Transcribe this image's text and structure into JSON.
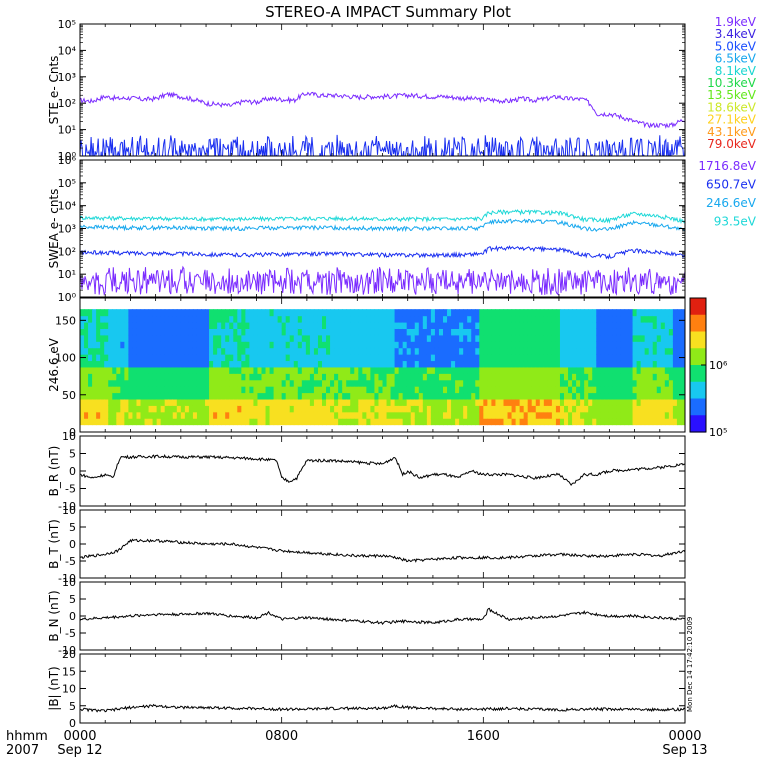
{
  "title": "STEREO-A IMPACT Summary Plot",
  "colors": {
    "axis": "#000000",
    "trace": "#000000"
  },
  "ste_legend": [
    {
      "label": "1.9keV",
      "color": "#7b2cff"
    },
    {
      "label": "3.4keV",
      "color": "#3a1fe0"
    },
    {
      "label": "5.0keV",
      "color": "#1a4dff"
    },
    {
      "label": "6.5keV",
      "color": "#16a6ee"
    },
    {
      "label": "8.1keV",
      "color": "#19d6d0"
    },
    {
      "label": "10.3keV",
      "color": "#20d84a"
    },
    {
      "label": "13.5keV",
      "color": "#62e81b"
    },
    {
      "label": "18.6keV",
      "color": "#cde82a"
    },
    {
      "label": "27.1keV",
      "color": "#ffd21e"
    },
    {
      "label": "43.1keV",
      "color": "#ff9a1a"
    },
    {
      "label": "79.0keV",
      "color": "#e8281e"
    }
  ],
  "swea_legend": [
    {
      "label": "1716.8eV",
      "color": "#7b2cff"
    },
    {
      "label": "650.7eV",
      "color": "#1a2ff0"
    },
    {
      "label": "246.6eV",
      "color": "#18a8ee"
    },
    {
      "label": "93.5eV",
      "color": "#1ed8d8"
    }
  ],
  "x_axis": {
    "row_label": "hhmm",
    "year_label": "2007",
    "ticks": [
      {
        "value": 0,
        "label": "0000",
        "date": "Sep 12"
      },
      {
        "value": 8,
        "label": "0800",
        "date": ""
      },
      {
        "value": 16,
        "label": "1600",
        "date": ""
      },
      {
        "value": 24,
        "label": "0000",
        "date": "Sep 13"
      }
    ]
  },
  "side_stamp": "Mon Dec 14 17:42:10 2009",
  "chart_data": [
    {
      "id": "ste",
      "type": "line",
      "ylabel": "STE e- Cnts",
      "y_scale": "log",
      "ylim": [
        1,
        100000
      ],
      "ytick_labels": [
        "10⁰",
        "10¹",
        "10²",
        "10³",
        "10⁴",
        "10⁵"
      ],
      "series": [
        {
          "name": "1.9keV",
          "color": "#7b2cff",
          "x": [
            0,
            0.5,
            1,
            1.5,
            2,
            2.5,
            3,
            3.5,
            4,
            4.5,
            5,
            5.5,
            6,
            6.5,
            7,
            7.5,
            8,
            8.5,
            9,
            9.5,
            10,
            10.5,
            11,
            11.5,
            12,
            12.5,
            13,
            13.5,
            14,
            14.5,
            15,
            15.5,
            16,
            16.5,
            17,
            17.5,
            18,
            18.5,
            19,
            19.2,
            19.5,
            20,
            20.5,
            21,
            21.5,
            22,
            22.5,
            23,
            23.5,
            24
          ],
          "y": [
            130,
            120,
            180,
            150,
            160,
            140,
            150,
            220,
            180,
            140,
            100,
            90,
            80,
            120,
            110,
            150,
            140,
            130,
            240,
            200,
            200,
            190,
            170,
            180,
            180,
            190,
            200,
            190,
            180,
            180,
            160,
            150,
            140,
            130,
            120,
            150,
            130,
            150,
            180,
            150,
            150,
            140,
            40,
            40,
            30,
            20,
            15,
            15,
            15,
            25
          ]
        },
        {
          "name": "3.4keV",
          "color": "#1a2ff0",
          "x": [
            0,
            24
          ],
          "y": [
            1.5,
            1.5
          ]
        }
      ]
    },
    {
      "id": "swea",
      "type": "line",
      "ylabel": "SWEA e- cnts",
      "y_scale": "log",
      "ylim": [
        1,
        1000000
      ],
      "ytick_labels": [
        "10⁰",
        "10¹",
        "10²",
        "10³",
        "10⁴",
        "10⁵",
        "10⁶"
      ],
      "series": [
        {
          "name": "93.5eV",
          "color": "#1ed8d8",
          "x": [
            0,
            2,
            4,
            6,
            8,
            10,
            12,
            14,
            15,
            16,
            16.2,
            17,
            18,
            19,
            20,
            21,
            22,
            23,
            24
          ],
          "y": [
            3000,
            2800,
            2700,
            2600,
            2700,
            2800,
            2600,
            2600,
            2600,
            2800,
            5000,
            5500,
            5200,
            4800,
            2500,
            2300,
            4500,
            3500,
            2000
          ]
        },
        {
          "name": "246.6eV",
          "color": "#18a8ee",
          "x": [
            0,
            2,
            4,
            6,
            8,
            10,
            12,
            14,
            15,
            16,
            16.2,
            17,
            18,
            19,
            20,
            21,
            22,
            23,
            24
          ],
          "y": [
            1200,
            1100,
            1100,
            1000,
            1100,
            1100,
            1000,
            1000,
            1000,
            1100,
            2000,
            2200,
            2100,
            1900,
            1000,
            900,
            1800,
            1400,
            800
          ]
        },
        {
          "name": "650.7eV",
          "color": "#1a2ff0",
          "x": [
            0,
            2,
            4,
            6,
            8,
            10,
            12,
            14,
            15,
            16,
            16.2,
            17,
            18,
            19,
            20,
            21,
            22,
            23,
            24
          ],
          "y": [
            90,
            85,
            80,
            70,
            75,
            80,
            70,
            70,
            70,
            80,
            130,
            140,
            130,
            120,
            70,
            60,
            110,
            90,
            60
          ]
        },
        {
          "name": "1716.8eV",
          "color": "#7b2cff",
          "x": [
            0,
            24
          ],
          "y": [
            5,
            5
          ]
        }
      ]
    },
    {
      "id": "pad",
      "type": "heatmap",
      "ylabel": "246.6 eV",
      "ylim": [
        0,
        180
      ],
      "yticks": [
        0,
        50,
        100,
        150
      ],
      "colorbar": {
        "scale": "log",
        "range": [
          100000,
          10000000
        ],
        "tick_labels": [
          "10⁵",
          "10⁶"
        ],
        "tick_values": [
          100000,
          1000000
        ]
      },
      "segments": [
        {
          "x0": 0,
          "x1": 1.2,
          "core": 0.55
        },
        {
          "x0": 1.2,
          "x1": 2.0,
          "core": 0.35
        },
        {
          "x0": 2.0,
          "x1": 5.2,
          "core": 0.2
        },
        {
          "x0": 5.2,
          "x1": 6.8,
          "core": 0.55
        },
        {
          "x0": 6.8,
          "x1": 7.5,
          "core": 0.4
        },
        {
          "x0": 7.5,
          "x1": 10.0,
          "core": 0.5
        },
        {
          "x0": 10.0,
          "x1": 12.5,
          "core": 0.42
        },
        {
          "x0": 12.5,
          "x1": 15.8,
          "core": 0.25
        },
        {
          "x0": 15.8,
          "x1": 19.0,
          "core": 0.7
        },
        {
          "x0": 19.0,
          "x1": 20.5,
          "core": 0.4
        },
        {
          "x0": 20.5,
          "x1": 22.0,
          "core": 0.15
        },
        {
          "x0": 22.0,
          "x1": 23.6,
          "core": 0.5
        },
        {
          "x0": 23.6,
          "x1": 24.0,
          "core": 0.2
        }
      ]
    },
    {
      "id": "br",
      "type": "line",
      "ylabel": "B_R (nT)",
      "ylim": [
        -10,
        10
      ],
      "yticks": [
        -10,
        -5,
        0,
        5,
        10
      ],
      "series": [
        {
          "name": "B_R",
          "color": "#000000",
          "x": [
            0,
            0.5,
            1,
            1.3,
            1.6,
            2,
            3,
            4,
            5,
            6,
            7,
            7.8,
            8,
            8.3,
            8.6,
            9,
            10,
            11,
            12,
            12.5,
            12.8,
            13,
            13.5,
            14,
            14.5,
            15,
            15.5,
            16,
            17,
            18,
            19,
            19.5,
            20,
            20.5,
            21,
            22,
            23,
            24
          ],
          "y": [
            -1,
            -2,
            -1,
            -2,
            4,
            4,
            4.2,
            4,
            4,
            3.8,
            3.5,
            3,
            -2,
            -3,
            -2,
            3,
            3,
            2.5,
            2,
            4,
            -1,
            0,
            -2,
            -1,
            -1,
            -2,
            0,
            -1,
            -1,
            -2,
            -1,
            -4,
            -1,
            -1,
            0,
            0.5,
            1,
            2
          ]
        }
      ]
    },
    {
      "id": "bt",
      "type": "line",
      "ylabel": "B_T (nT)",
      "ylim": [
        -10,
        10
      ],
      "yticks": [
        -10,
        -5,
        0,
        5,
        10
      ],
      "series": [
        {
          "name": "B_T",
          "color": "#000000",
          "x": [
            0,
            0.5,
            1,
            1.5,
            2,
            3,
            4,
            5,
            6,
            7,
            8,
            9,
            10,
            11,
            12,
            12.5,
            13,
            14,
            15,
            16,
            17,
            18,
            19,
            20,
            21,
            22,
            23,
            24
          ],
          "y": [
            -4,
            -3.5,
            -3,
            -2,
            1,
            1,
            0.5,
            0,
            0,
            -1,
            -2,
            -2.5,
            -3,
            -3.5,
            -3.5,
            -4,
            -5,
            -4.5,
            -4,
            -4,
            -4,
            -3.5,
            -3,
            -3.5,
            -3.5,
            -3,
            -3.5,
            -2
          ]
        }
      ]
    },
    {
      "id": "bn",
      "type": "line",
      "ylabel": "B_N (nT)",
      "ylim": [
        -10,
        10
      ],
      "yticks": [
        -10,
        -5,
        0,
        5,
        10
      ],
      "series": [
        {
          "name": "B_N",
          "color": "#000000",
          "x": [
            0,
            1,
            2,
            3,
            4,
            5,
            6,
            7,
            7.5,
            8,
            9,
            10,
            11,
            12,
            13,
            14,
            15,
            16,
            16.2,
            17,
            18,
            19,
            20,
            21,
            22,
            23,
            24
          ],
          "y": [
            -1,
            -0.5,
            0,
            0.5,
            0.5,
            0.8,
            0,
            -0.5,
            1,
            -1,
            -0.5,
            -1,
            -1.5,
            -2,
            -1.5,
            -2,
            -1,
            -1,
            2,
            -1,
            -0.5,
            0,
            1,
            0,
            0,
            -0.5,
            -1
          ]
        }
      ]
    },
    {
      "id": "b",
      "type": "line",
      "ylabel": "|B| (nT)",
      "ylim": [
        0,
        20
      ],
      "yticks": [
        0,
        5,
        10,
        15,
        20
      ],
      "series": [
        {
          "name": "|B|",
          "color": "#000000",
          "x": [
            0,
            1,
            2,
            3,
            4,
            5,
            6,
            7,
            8,
            9,
            10,
            11,
            12,
            12.5,
            13,
            14,
            15,
            16,
            17,
            18,
            19,
            20,
            21,
            22,
            23,
            24
          ],
          "y": [
            4,
            3.5,
            4.5,
            5,
            4.5,
            4.5,
            4.3,
            4.2,
            4,
            4,
            4.2,
            4.2,
            4.3,
            5,
            4.5,
            4.2,
            4,
            4,
            4.2,
            4,
            3.8,
            4,
            4,
            4,
            3.8,
            4
          ]
        }
      ]
    }
  ]
}
